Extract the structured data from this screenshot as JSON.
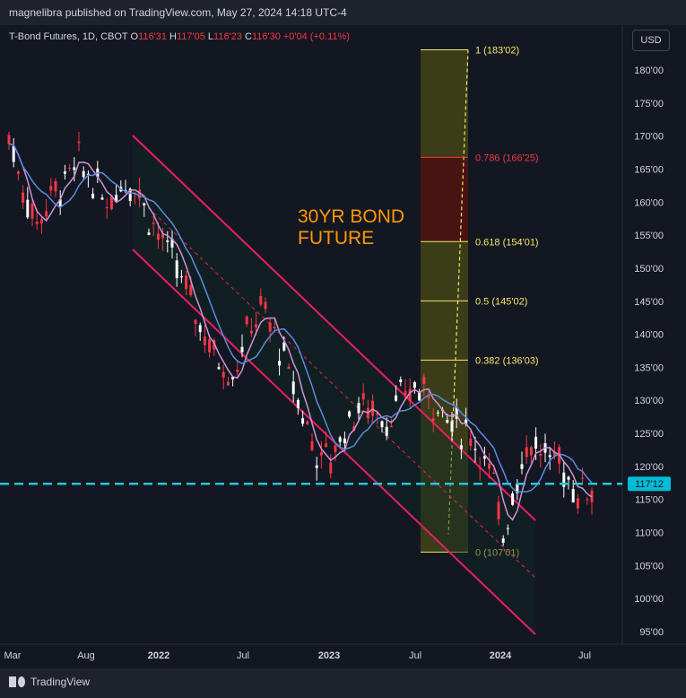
{
  "header": {
    "publisher": "magnelibra published on TradingView.com, May 27, 2024 14:18 UTC-4"
  },
  "legend": {
    "symbol": "T-Bond Futures, 1D, CBOT",
    "o_label": "O",
    "o_value": "116'31",
    "h_label": "H",
    "h_value": "117'05",
    "l_label": "L",
    "l_value": "116'23",
    "c_label": "C",
    "c_value": "116'30",
    "change": "+0'04 (+0.11%)"
  },
  "currency_button": "USD",
  "annotation": {
    "line1": "30YR BOND",
    "line2": "FUTURE"
  },
  "footer": {
    "logo_text": "TradingView"
  },
  "colors": {
    "background": "#131722",
    "channel": "#e91e63",
    "fib_fill": "#5d5c12",
    "fib_line": "#f5e663",
    "fib_red": "#f23645",
    "hline": "#26c6da",
    "candle_up": "#ffffff",
    "candle_down": "#f23645",
    "ma_fast": "#ce93d8",
    "ma_slow": "#5c8be0"
  },
  "chart_data": {
    "type": "candlestick",
    "x_tick_labels": [
      "Mar",
      "Aug",
      "2022",
      "Jul",
      "2023",
      "Jul",
      "2024",
      "Jul"
    ],
    "y_ticks": [
      "95'00",
      "100'00",
      "105'00",
      "110'00",
      "115'00",
      "120'00",
      "125'00",
      "130'00",
      "135'00",
      "140'00",
      "145'00",
      "150'00",
      "155'00",
      "160'00",
      "165'00",
      "170'00",
      "175'00",
      "180'00"
    ],
    "y_tick_values": [
      95,
      100,
      105,
      110,
      115,
      120,
      125,
      130,
      135,
      140,
      145,
      150,
      155,
      160,
      165,
      170,
      175,
      180
    ],
    "ylim": [
      93,
      185
    ],
    "last_price": {
      "label": "117'12",
      "value": 117.375
    },
    "fibonacci": [
      {
        "label": "1 (183'02)",
        "value": 183.0625
      },
      {
        "label": "0.786 (166'25)",
        "value": 166.78
      },
      {
        "label": "0.618 (154'01)",
        "value": 154.03
      },
      {
        "label": "0.5 (145'02)",
        "value": 145.06
      },
      {
        "label": "0.382 (136'03)",
        "value": 136.09
      },
      {
        "label": "0 (107'01)",
        "value": 107.03
      }
    ],
    "price_path": [
      [
        0,
        170
      ],
      [
        3,
        162
      ],
      [
        6,
        157
      ],
      [
        9,
        161
      ],
      [
        12,
        163
      ],
      [
        15,
        166
      ],
      [
        18,
        163
      ],
      [
        21,
        160
      ],
      [
        24,
        163
      ],
      [
        27,
        163
      ],
      [
        30,
        158
      ],
      [
        33,
        154
      ],
      [
        36,
        150
      ],
      [
        39,
        145
      ],
      [
        42,
        140
      ],
      [
        45,
        136
      ],
      [
        48,
        134
      ],
      [
        51,
        140
      ],
      [
        54,
        144
      ],
      [
        57,
        140
      ],
      [
        60,
        134
      ],
      [
        63,
        128
      ],
      [
        66,
        122
      ],
      [
        69,
        121
      ],
      [
        72,
        126
      ],
      [
        75,
        129
      ],
      [
        78,
        129
      ],
      [
        81,
        127
      ],
      [
        84,
        130
      ],
      [
        87,
        132
      ],
      [
        90,
        131
      ],
      [
        93,
        128
      ],
      [
        96,
        126
      ],
      [
        99,
        125
      ],
      [
        102,
        121
      ],
      [
        104,
        117
      ],
      [
        105,
        112
      ],
      [
        106,
        110
      ],
      [
        108,
        116
      ],
      [
        110,
        121
      ],
      [
        112,
        124
      ],
      [
        114,
        122
      ],
      [
        116,
        121
      ],
      [
        118,
        121
      ],
      [
        120,
        118
      ],
      [
        122,
        116
      ],
      [
        124,
        117
      ],
      [
        125,
        117
      ]
    ]
  }
}
